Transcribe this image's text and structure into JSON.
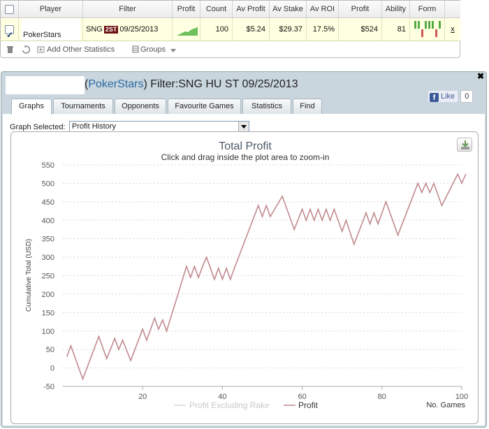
{
  "results_table": {
    "headers": [
      "Player",
      "Filter",
      "Profit",
      "Count",
      "Av Profit",
      "Av Stake",
      "Av ROI",
      "Profit",
      "Ability",
      "Form"
    ],
    "row": {
      "checked": true,
      "player_site": "PokerStars",
      "filter_prefix": "SNG",
      "filter_tag": "2ST",
      "filter_date": "09/25/2013",
      "count": "100",
      "av_profit": "$5.24",
      "av_stake": "$29.37",
      "av_roi": "17.5%",
      "profit": "$524",
      "ability": "81",
      "remove_label": "x"
    },
    "form_results": [
      1,
      1,
      0,
      1,
      1,
      1,
      0,
      1
    ],
    "footer": {
      "add_stats_label": "Add Other Statistics",
      "groups_label": "Groups"
    }
  },
  "panel": {
    "title_site": "PokerStars",
    "title_filter": "Filter:SNG HU ST 09/25/2013",
    "like_label": "Like",
    "like_count": "0",
    "tabs": [
      {
        "label": "Graphs",
        "active": true
      },
      {
        "label": "Tournaments",
        "active": false
      },
      {
        "label": "Opponents",
        "active": false
      },
      {
        "label": "Favourite Games",
        "active": false
      },
      {
        "label": "Statistics",
        "active": false
      },
      {
        "label": "Find",
        "active": false
      }
    ],
    "graph_selected_label": "Graph Selected:",
    "graph_selected_value": "Profit History"
  },
  "colors": {
    "profit_line": "#c08a8f",
    "excl_rake_line": "#d7d7d7",
    "form_win": "#55aa44",
    "form_loss": "#cc5555"
  },
  "chart_data": {
    "type": "line",
    "title": "Total Profit",
    "subtitle": "Click and drag inside the plot area to zoom-in",
    "ylabel": "Cumulative Total (USD)",
    "xlabel": "No. Games",
    "xlim": [
      0,
      100
    ],
    "ylim": [
      -50,
      550
    ],
    "x_ticks": [
      20,
      40,
      60,
      80,
      100
    ],
    "y_ticks": [
      -50,
      0,
      50,
      100,
      150,
      200,
      250,
      300,
      350,
      400,
      450,
      500,
      550
    ],
    "grid": true,
    "legend_position": "bottom",
    "series": [
      {
        "name": "Profit Excluding Rake",
        "values": []
      },
      {
        "name": "Profit",
        "x": [
          1,
          2,
          5,
          9,
          11,
          13,
          14,
          15,
          17,
          20,
          21,
          23,
          24,
          25,
          26,
          31,
          32,
          33,
          34,
          35,
          36,
          38,
          39,
          40,
          41,
          42,
          43,
          49,
          50,
          51,
          52,
          55,
          58,
          60,
          61,
          62,
          63,
          64,
          65,
          66,
          67,
          68,
          70,
          71,
          73,
          76,
          77,
          78,
          79,
          81,
          84,
          89,
          90,
          91,
          92,
          93,
          95,
          99,
          100,
          101
        ],
        "values": [
          30,
          60,
          -30,
          85,
          25,
          80,
          50,
          75,
          20,
          105,
          75,
          135,
          105,
          130,
          100,
          275,
          245,
          275,
          245,
          275,
          300,
          240,
          270,
          240,
          270,
          240,
          270,
          440,
          410,
          440,
          410,
          465,
          375,
          430,
          400,
          430,
          400,
          430,
          400,
          430,
          400,
          430,
          370,
          400,
          335,
          420,
          390,
          420,
          390,
          450,
          360,
          500,
          475,
          500,
          475,
          500,
          440,
          525,
          500,
          525
        ]
      }
    ]
  }
}
